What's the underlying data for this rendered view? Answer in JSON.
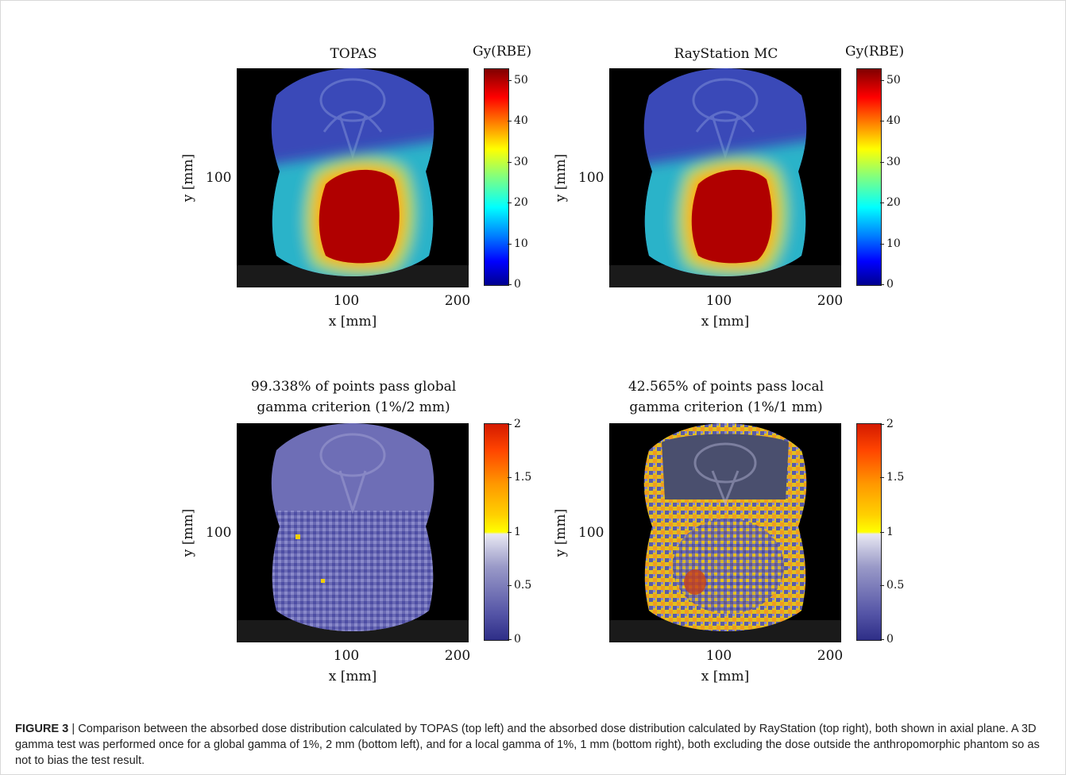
{
  "panels": [
    {
      "title": "TOPAS",
      "colorbar_title": "Gy(RBE)",
      "colorbar_ticks": [
        "0",
        "10",
        "20",
        "30",
        "40",
        "50"
      ],
      "x_ticks": [
        "100",
        "200"
      ],
      "xlabel": "x [mm]",
      "y_ticks": [
        "100"
      ],
      "ylabel": "y [mm]",
      "colormap": "jet",
      "colorbar_range": [
        0,
        53
      ]
    },
    {
      "title": "RayStation MC",
      "colorbar_title": "Gy(RBE)",
      "colorbar_ticks": [
        "0",
        "10",
        "20",
        "30",
        "40",
        "50"
      ],
      "x_ticks": [
        "100",
        "200"
      ],
      "xlabel": "x [mm]",
      "y_ticks": [
        "100"
      ],
      "ylabel": "y [mm]",
      "colormap": "jet",
      "colorbar_range": [
        0,
        53
      ]
    },
    {
      "title_line1": "99.338% of points pass global",
      "title_line2": "gamma criterion (1%/2 mm)",
      "colorbar_ticks": [
        "0",
        "0.5",
        "1",
        "1.5",
        "2"
      ],
      "x_ticks": [
        "100",
        "200"
      ],
      "xlabel": "x [mm]",
      "y_ticks": [
        "100"
      ],
      "ylabel": "y [mm]",
      "colormap": "gamma",
      "colorbar_range": [
        0,
        2
      ]
    },
    {
      "title_line1": "42.565% of points pass local",
      "title_line2": "gamma criterion (1%/1 mm)",
      "colorbar_ticks": [
        "0",
        "0.5",
        "1",
        "1.5",
        "2"
      ],
      "x_ticks": [
        "100",
        "200"
      ],
      "xlabel": "x [mm]",
      "y_ticks": [
        "100"
      ],
      "ylabel": "y [mm]",
      "colormap": "gamma",
      "colorbar_range": [
        0,
        2
      ]
    }
  ],
  "caption": {
    "label": "FIGURE 3",
    "separator": "|",
    "text": "Comparison between the absorbed dose distribution calculated by TOPAS (top left) and the absorbed dose distribution calculated by RayStation (top right), both shown in axial plane. A 3D gamma test was performed once for a global gamma of 1%, 2 mm (bottom left), and for a local gamma of 1%, 1 mm (bottom right), both excluding the dose outside the anthropomorphic phantom so as not to bias the test result."
  },
  "colors": {
    "background": "#000000",
    "tissue": "#3a49b8",
    "dose_high": "#b00000",
    "gamma_low": "#5a5aa8",
    "gamma_fail": "#f3d000"
  }
}
